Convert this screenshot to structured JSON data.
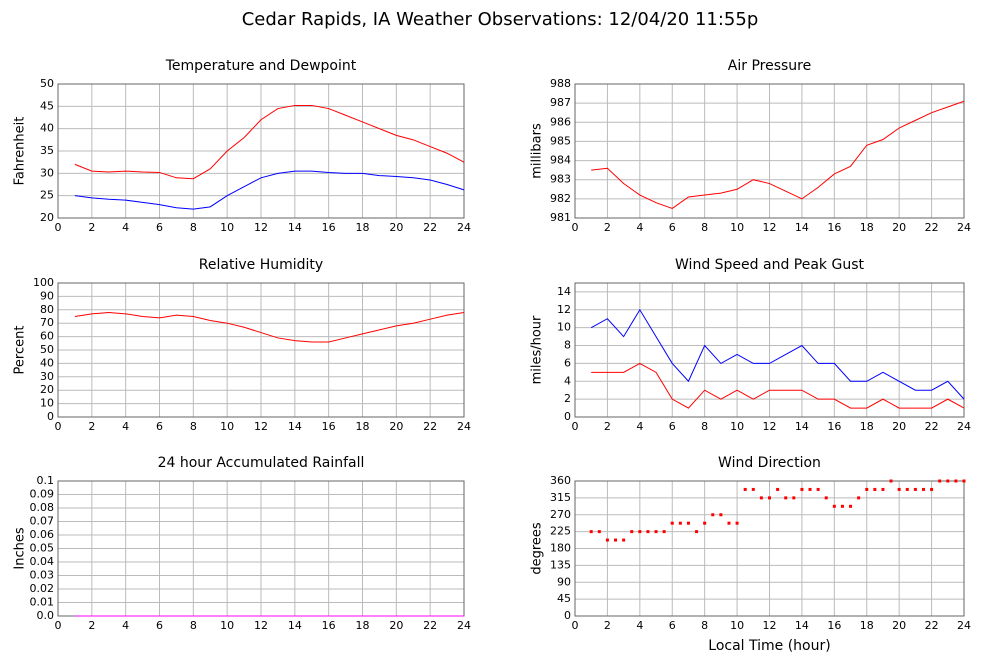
{
  "title": "Cedar Rapids, IA Weather Observations: 12/04/20 11:55p",
  "chart_data": [
    {
      "type": "line",
      "title": "Temperature and Dewpoint",
      "ylabel": "Fahrenheit",
      "x": [
        1,
        2,
        3,
        4,
        5,
        6,
        7,
        8,
        9,
        10,
        11,
        12,
        13,
        14,
        15,
        16,
        17,
        18,
        19,
        20,
        21,
        22,
        23,
        24
      ],
      "series": [
        {
          "color": "#ff0000",
          "values": [
            32,
            30.5,
            30.3,
            30.5,
            30.3,
            30.2,
            29,
            28.8,
            31,
            35,
            38,
            42,
            44.5,
            45.2,
            45.2,
            44.5,
            43,
            41.5,
            40,
            38.5,
            37.5,
            36,
            34.5,
            32.5
          ]
        },
        {
          "color": "#0000ff",
          "values": [
            25,
            24.5,
            24.2,
            24,
            23.5,
            23,
            22.3,
            22,
            22.5,
            25,
            27,
            29,
            30,
            30.5,
            30.5,
            30.2,
            30,
            30,
            29.5,
            29.3,
            29,
            28.5,
            27.5,
            26.3
          ]
        }
      ],
      "xlim": [
        0,
        24
      ],
      "xticks": [
        0,
        2,
        4,
        6,
        8,
        10,
        12,
        14,
        16,
        18,
        20,
        22,
        24
      ],
      "ylim": [
        20,
        50
      ],
      "yticks": [
        20,
        25,
        30,
        35,
        40,
        45,
        50
      ],
      "grid": true
    },
    {
      "type": "line",
      "title": "Air Pressure",
      "ylabel": "millibars",
      "x": [
        1,
        2,
        3,
        4,
        5,
        6,
        7,
        8,
        9,
        10,
        11,
        12,
        13,
        14,
        15,
        16,
        17,
        18,
        19,
        20,
        21,
        22,
        23,
        24
      ],
      "series": [
        {
          "color": "#ff0000",
          "values": [
            983.5,
            983.6,
            982.8,
            982.2,
            981.8,
            981.5,
            982.1,
            982.2,
            982.3,
            982.5,
            983.0,
            982.8,
            982.4,
            982.0,
            982.6,
            983.3,
            983.7,
            984.8,
            985.1,
            985.7,
            986.1,
            986.5,
            986.8,
            987.1
          ]
        }
      ],
      "xlim": [
        0,
        24
      ],
      "xticks": [
        0,
        2,
        4,
        6,
        8,
        10,
        12,
        14,
        16,
        18,
        20,
        22,
        24
      ],
      "ylim": [
        981,
        988
      ],
      "yticks": [
        981,
        982,
        983,
        984,
        985,
        986,
        987,
        988
      ],
      "grid": true
    },
    {
      "type": "line",
      "title": "Relative Humidity",
      "ylabel": "Percent",
      "x": [
        1,
        2,
        3,
        4,
        5,
        6,
        7,
        8,
        9,
        10,
        11,
        12,
        13,
        14,
        15,
        16,
        17,
        18,
        19,
        20,
        21,
        22,
        23,
        24
      ],
      "series": [
        {
          "color": "#ff0000",
          "values": [
            75,
            77,
            78,
            77,
            75,
            74,
            76,
            75,
            72,
            70,
            67,
            63,
            59,
            57,
            56,
            56,
            59,
            62,
            65,
            68,
            70,
            73,
            76,
            78
          ]
        }
      ],
      "xlim": [
        0,
        24
      ],
      "xticks": [
        0,
        2,
        4,
        6,
        8,
        10,
        12,
        14,
        16,
        18,
        20,
        22,
        24
      ],
      "ylim": [
        0,
        100
      ],
      "yticks": [
        0,
        10,
        20,
        30,
        40,
        50,
        60,
        70,
        80,
        90,
        100
      ],
      "grid": true
    },
    {
      "type": "line",
      "title": "Wind Speed and Peak Gust",
      "ylabel": "miles/hour",
      "x": [
        1,
        2,
        3,
        4,
        5,
        6,
        7,
        8,
        9,
        10,
        11,
        12,
        13,
        14,
        15,
        16,
        17,
        18,
        19,
        20,
        21,
        22,
        23,
        24
      ],
      "series": [
        {
          "color": "#0000ff",
          "values": [
            10,
            11,
            9,
            12,
            9,
            6,
            4,
            8,
            6,
            7,
            6,
            6,
            7,
            8,
            6,
            6,
            4,
            4,
            5,
            4,
            3,
            3,
            4,
            2
          ]
        },
        {
          "color": "#ff0000",
          "values": [
            5,
            5,
            5,
            6,
            5,
            2,
            1,
            3,
            2,
            3,
            2,
            3,
            3,
            3,
            2,
            2,
            1,
            1,
            2,
            1,
            1,
            1,
            2,
            1
          ]
        }
      ],
      "xlim": [
        0,
        24
      ],
      "xticks": [
        0,
        2,
        4,
        6,
        8,
        10,
        12,
        14,
        16,
        18,
        20,
        22,
        24
      ],
      "ylim": [
        0,
        15
      ],
      "yticks": [
        0,
        2,
        4,
        6,
        8,
        10,
        12,
        14
      ],
      "grid": true
    },
    {
      "type": "line",
      "title": "24 hour Accumulated Rainfall",
      "ylabel": "Inches",
      "x": [
        1,
        24
      ],
      "series": [
        {
          "color": "#ff00ff",
          "values": [
            0,
            0
          ]
        }
      ],
      "xlim": [
        0,
        24
      ],
      "xticks": [
        0,
        2,
        4,
        6,
        8,
        10,
        12,
        14,
        16,
        18,
        20,
        22,
        24
      ],
      "ylim": [
        0,
        0.1
      ],
      "yticks": [
        {
          "value": 0,
          "label": "0.0"
        },
        0.01,
        0.02,
        0.03,
        0.04,
        0.05,
        0.06,
        0.07,
        0.08,
        0.09,
        0.1
      ],
      "grid": true
    },
    {
      "type": "scatter",
      "title": "Wind Direction",
      "ylabel": "degrees",
      "xlabel": "Local Time (hour)",
      "x": [
        1,
        1.5,
        2,
        2.5,
        3,
        3.5,
        4,
        4.5,
        5,
        5.5,
        6,
        6.5,
        7,
        7.5,
        8,
        8.5,
        9,
        9.5,
        10,
        10.5,
        11,
        11.5,
        12,
        12.5,
        13,
        13.5,
        14,
        14.5,
        15,
        15.5,
        16,
        16.5,
        17,
        17.5,
        18,
        18.5,
        19,
        19.5,
        20,
        20.5,
        21,
        21.5,
        22,
        22.5,
        23,
        23.5,
        24
      ],
      "series": [
        {
          "color": "#ff0000",
          "values": [
            225,
            225,
            202.5,
            202.5,
            202.5,
            225,
            225,
            225,
            225,
            225,
            247.5,
            247.5,
            247.5,
            225,
            247.5,
            270,
            270,
            247.5,
            247.5,
            337.5,
            337.5,
            315,
            315,
            337.5,
            315,
            315,
            337.5,
            337.5,
            337.5,
            315,
            292.5,
            292.5,
            292.5,
            315,
            337.5,
            337.5,
            337.5,
            360,
            337.5,
            337.5,
            337.5,
            337.5,
            337.5,
            360,
            360,
            360,
            360
          ]
        }
      ],
      "xlim": [
        0,
        24
      ],
      "xticks": [
        0,
        2,
        4,
        6,
        8,
        10,
        12,
        14,
        16,
        18,
        20,
        22,
        24
      ],
      "ylim": [
        0,
        360
      ],
      "yticks": [
        0,
        45,
        90,
        135,
        180,
        225,
        270,
        315,
        360
      ],
      "grid": true
    }
  ]
}
